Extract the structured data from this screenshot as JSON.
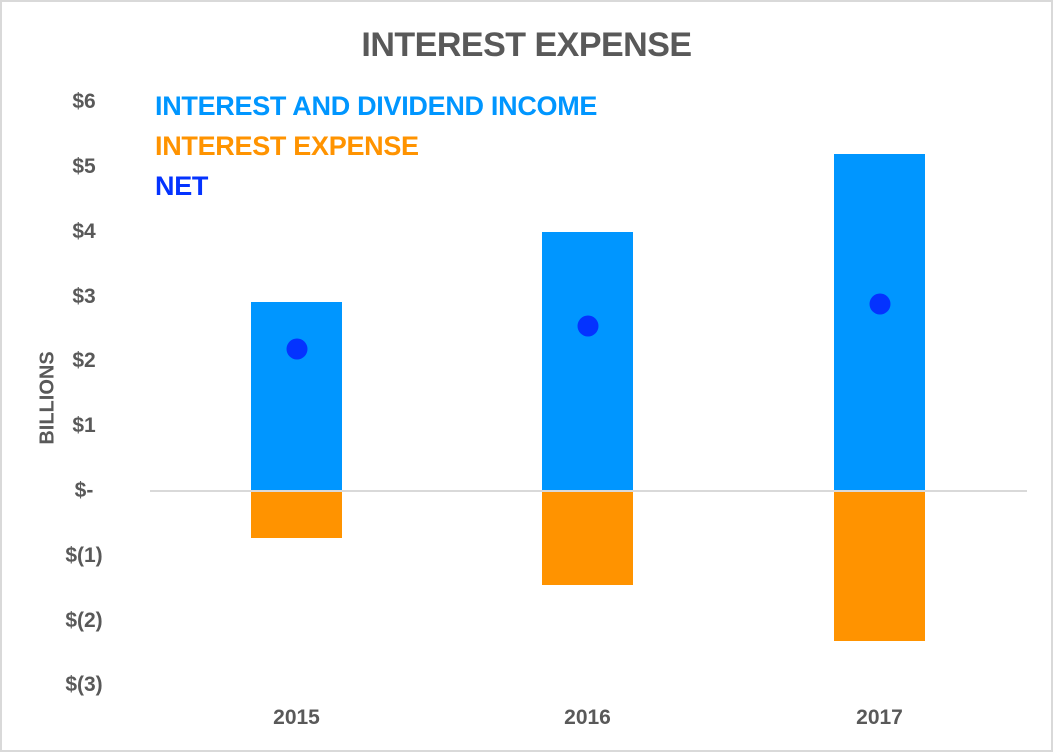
{
  "chart_data": {
    "type": "bar",
    "title": "INTEREST EXPENSE",
    "xlabel": "",
    "ylabel": "BILLIONS",
    "categories": [
      "2015",
      "2016",
      "2017"
    ],
    "series": [
      {
        "name": "INTEREST AND DIVIDEND INCOME",
        "kind": "bar",
        "color": "#0096ff",
        "values": [
          2.92,
          4.0,
          5.2
        ]
      },
      {
        "name": "INTEREST EXPENSE",
        "kind": "bar",
        "color": "#ff9300",
        "values": [
          -0.73,
          -1.45,
          -2.32
        ]
      },
      {
        "name": "NET",
        "kind": "marker",
        "color": "#0433ff",
        "values": [
          2.19,
          2.55,
          2.89
        ]
      }
    ],
    "ylim": [
      -3,
      6
    ],
    "yticks": [
      6,
      5,
      4,
      3,
      2,
      1,
      0,
      -1,
      -2,
      -3
    ],
    "ytick_labels": [
      "$6",
      "$5",
      "$4",
      "$3",
      "$2",
      "$1",
      "$-",
      "$(1)",
      "$(2)",
      "$(3)"
    ],
    "grid": false,
    "legend_position": "top-left"
  },
  "title": "INTEREST EXPENSE",
  "ylabel": "BILLIONS",
  "legend": [
    {
      "label": "INTEREST AND DIVIDEND INCOME",
      "color": "#0096ff"
    },
    {
      "label": "INTEREST EXPENSE",
      "color": "#ff9300"
    },
    {
      "label": "NET",
      "color": "#0433ff"
    }
  ],
  "yticks": [
    "$6",
    "$5",
    "$4",
    "$3",
    "$2",
    "$1",
    "$-",
    "$(1)",
    "$(2)",
    "$(3)"
  ],
  "xticks": [
    "2015",
    "2016",
    "2017"
  ]
}
